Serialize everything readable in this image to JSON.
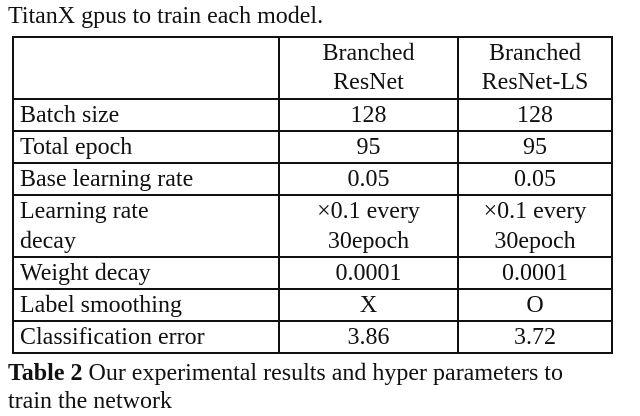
{
  "intro": {
    "line1": "TitanX gpus to train each model."
  },
  "table": {
    "headers": {
      "col_a_line1": "Branched",
      "col_a_line2": "ResNet",
      "col_b_line1": "Branched",
      "col_b_line2": "ResNet-LS"
    },
    "rows": [
      {
        "label": "Batch size",
        "a": "128",
        "b": "128"
      },
      {
        "label": "Total epoch",
        "a": "95",
        "b": "95"
      },
      {
        "label": "Base learning rate",
        "a": "0.05",
        "b": "0.05"
      },
      {
        "label_line1": "Learning rate",
        "label_line2": "decay",
        "a_line1": "×0.1 every",
        "a_line2": "30epoch",
        "b_line1": "×0.1 every",
        "b_line2": "30epoch"
      },
      {
        "label": "Weight decay",
        "a": "0.0001",
        "b": "0.0001"
      },
      {
        "label": "Label smoothing",
        "a": "X",
        "b": "O"
      },
      {
        "label": "Classification error",
        "a": "3.86",
        "b": "3.72"
      }
    ]
  },
  "caption": {
    "prefix": "Table 2",
    "line1": " Our experimental results and hyper parameters to",
    "line2": "train the network"
  }
}
